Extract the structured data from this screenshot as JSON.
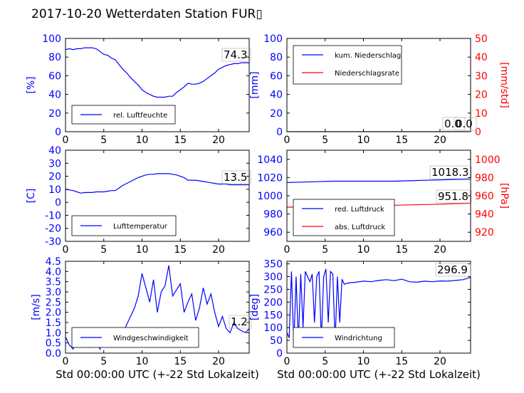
{
  "figure_title": "2017-10-20 Wetterdaten Station FUR▯",
  "colors": {
    "blue": "#0000ff",
    "red": "#ff0000",
    "black": "#000000",
    "light_blue": "#8080ff"
  },
  "chart_data": [
    {
      "id": "humidity",
      "type": "line",
      "xlabel": "",
      "ylabel": "[%]",
      "ylim": [
        0,
        100
      ],
      "xlim": [
        0,
        24
      ],
      "yticks": [
        0,
        20,
        40,
        60,
        80,
        100
      ],
      "xticks": [
        0,
        5,
        10,
        15,
        20
      ],
      "legend": {
        "placement": "lower-left",
        "entries": [
          "rel. Luftfeuchte"
        ]
      },
      "annotation": "74.3",
      "series": [
        {
          "name": "rel. Luftfeuchte",
          "color": "#0000ff",
          "x": [
            0,
            0.5,
            1,
            1.5,
            2,
            2.5,
            3,
            3.5,
            4,
            4.5,
            5,
            5.5,
            6,
            6.5,
            7,
            7.5,
            8,
            8.5,
            9,
            9.5,
            10,
            10.5,
            11,
            11.5,
            12,
            12.5,
            13,
            13.5,
            14,
            14.5,
            15,
            15.5,
            16,
            16.5,
            17,
            17.5,
            18,
            18.5,
            19,
            19.5,
            20,
            20.5,
            21,
            21.5,
            22,
            22.5,
            23,
            23.5,
            24
          ],
          "y": [
            88,
            89,
            88,
            89,
            89,
            90,
            90,
            90,
            89,
            86,
            83,
            82,
            79,
            77,
            72,
            67,
            63,
            58,
            54,
            50,
            45,
            42,
            40,
            38,
            37,
            37,
            37,
            38,
            38,
            42,
            45,
            48,
            52,
            51,
            51,
            52,
            54,
            57,
            60,
            63,
            67,
            69,
            71,
            72,
            73,
            73,
            74,
            74,
            74
          ]
        }
      ]
    },
    {
      "id": "precipitation",
      "type": "line",
      "xlabel": "",
      "ylabel": "[mm]",
      "ylabel_right": "[mm/std]",
      "ylim": [
        0,
        100
      ],
      "ylim_right": [
        0,
        50
      ],
      "xlim": [
        0,
        24
      ],
      "yticks": [
        0,
        20,
        40,
        60,
        80,
        100
      ],
      "yticks_right": [
        0,
        10,
        20,
        30,
        40,
        50
      ],
      "xticks": [
        0,
        5,
        10,
        15,
        20
      ],
      "legend": {
        "placement": "upper-left",
        "entries": [
          "kum. Niederschlag",
          "Niederschlagsrate"
        ]
      },
      "annotation": "0.0",
      "annotation2": "0.0",
      "series": [
        {
          "name": "kum. Niederschlag",
          "color": "#0000ff",
          "x": [
            0,
            24
          ],
          "y": [
            0,
            0
          ]
        },
        {
          "name": "Niederschlagsrate",
          "color": "#ff0000",
          "axis": "right",
          "x": [
            0,
            24
          ],
          "y": [
            0,
            0
          ]
        }
      ]
    },
    {
      "id": "temperature",
      "type": "line",
      "xlabel": "",
      "ylabel": "[C]",
      "ylim": [
        -30,
        40
      ],
      "xlim": [
        0,
        24
      ],
      "yticks": [
        -30,
        -20,
        -10,
        0,
        10,
        20,
        30,
        40
      ],
      "xticks": [
        0,
        5,
        10,
        15,
        20
      ],
      "legend": {
        "placement": "lower-left",
        "entries": [
          "Lufttemperatur"
        ]
      },
      "annotation": "13.5",
      "series": [
        {
          "name": "Lufttemperatur",
          "color": "#0000ff",
          "x": [
            0,
            0.5,
            1,
            1.5,
            2,
            2.5,
            3,
            3.5,
            4,
            4.5,
            5,
            5.5,
            6,
            6.5,
            7,
            7.5,
            8,
            8.5,
            9,
            9.5,
            10,
            10.5,
            11,
            11.5,
            12,
            12.5,
            13,
            13.5,
            14,
            14.5,
            15,
            15.5,
            16,
            16.5,
            17,
            17.5,
            18,
            18.5,
            19,
            19.5,
            20,
            20.5,
            21,
            21.5,
            22,
            22.5,
            23,
            23.5,
            24
          ],
          "y": [
            10,
            9.5,
            9,
            8,
            7,
            7.5,
            7.5,
            7.5,
            8,
            8,
            8,
            8.5,
            9,
            9,
            11,
            13,
            14.5,
            16,
            17.5,
            19,
            20,
            21,
            21.5,
            21.5,
            22,
            22,
            22,
            22,
            21.5,
            21,
            20,
            19,
            17,
            17,
            17,
            16.5,
            16,
            15.5,
            15,
            14.5,
            14,
            14,
            14,
            13.5,
            13.5,
            13.5,
            13.5,
            13.5,
            13.5
          ]
        }
      ]
    },
    {
      "id": "pressure",
      "type": "line",
      "xlabel": "",
      "ylabel": "",
      "ylabel_right": "[hPa]",
      "ylim": [
        950,
        1050
      ],
      "ylim_right": [
        910,
        1010
      ],
      "xlim": [
        0,
        24
      ],
      "yticks": [
        960,
        980,
        1000,
        1020,
        1040
      ],
      "yticks_right": [
        920,
        940,
        960,
        980,
        1000
      ],
      "xticks": [
        0,
        5,
        10,
        15,
        20
      ],
      "legend": {
        "placement": "lower-left",
        "entries": [
          "red. Luftdruck",
          "abs. Luftdruck"
        ]
      },
      "annotation": "1018.3",
      "annotation2": "951.8",
      "series": [
        {
          "name": "red. Luftdruck",
          "color": "#0000ff",
          "x": [
            0,
            2,
            4,
            6,
            8,
            10,
            12,
            14,
            16,
            18,
            20,
            22,
            24
          ],
          "y": [
            1014.5,
            1015,
            1015.5,
            1016,
            1016,
            1016,
            1016,
            1016,
            1016.5,
            1017,
            1017.5,
            1018,
            1018.3
          ]
        },
        {
          "name": "abs. Luftdruck",
          "color": "#ff0000",
          "axis": "right",
          "x": [
            0,
            2,
            4,
            6,
            8,
            10,
            12,
            14,
            16,
            18,
            20,
            22,
            24
          ],
          "y": [
            947.5,
            947.8,
            948,
            948.3,
            948.6,
            949,
            949.3,
            949.6,
            950,
            950.4,
            950.8,
            951.4,
            951.8
          ]
        }
      ]
    },
    {
      "id": "wind_speed",
      "type": "line",
      "xlabel": "Std 00:00:00 UTC (+-22 Std Lokalzeit)",
      "ylabel": "[m/s]",
      "ylim": [
        0,
        4.5
      ],
      "xlim": [
        0,
        24
      ],
      "yticks": [
        0.0,
        0.5,
        1.0,
        1.5,
        2.0,
        2.5,
        3.0,
        3.5,
        4.0,
        4.5
      ],
      "xticks": [
        0,
        5,
        10,
        15,
        20
      ],
      "legend": {
        "placement": "lower-left",
        "entries": [
          "Windgeschwindigkeit"
        ]
      },
      "annotation": "1.2",
      "series": [
        {
          "name": "Windgeschwindigkeit",
          "color": "#0000ff",
          "x": [
            0,
            0.5,
            1,
            1.5,
            2,
            2.5,
            3,
            3.5,
            4,
            4.5,
            5,
            5.5,
            6,
            6.5,
            7,
            7.5,
            8,
            8.5,
            9,
            9.5,
            10,
            10.5,
            11,
            11.5,
            12,
            12.5,
            13,
            13.5,
            14,
            14.5,
            15,
            15.5,
            16,
            16.5,
            17,
            17.5,
            18,
            18.5,
            19,
            19.5,
            20,
            20.5,
            21,
            21.5,
            22,
            22.5,
            23,
            23.5,
            24
          ],
          "y": [
            0.8,
            0.4,
            0.2,
            0.9,
            0.5,
            1.1,
            0.3,
            0.7,
            0.9,
            0.2,
            0.8,
            1.0,
            0.3,
            0.6,
            0.5,
            1.0,
            1.4,
            1.8,
            2.2,
            2.8,
            3.9,
            3.2,
            2.5,
            3.6,
            2.0,
            3.0,
            3.3,
            4.3,
            2.8,
            3.1,
            3.4,
            2.0,
            2.5,
            2.9,
            1.6,
            2.2,
            3.2,
            2.4,
            2.9,
            2.0,
            1.3,
            1.8,
            1.2,
            1.0,
            1.5,
            1.2,
            1.1,
            1.0,
            1.2
          ]
        }
      ]
    },
    {
      "id": "wind_direction",
      "type": "line",
      "xlabel": "Std 00:00:00 UTC (+-22 Std Lokalzeit)",
      "ylabel": "[deg]",
      "ylim": [
        0,
        360
      ],
      "xlim": [
        0,
        24
      ],
      "yticks": [
        0,
        50,
        100,
        150,
        200,
        250,
        300,
        350
      ],
      "xticks": [
        0,
        5,
        10,
        15,
        20
      ],
      "legend": {
        "placement": "lower-left",
        "entries": [
          "Windrichtung"
        ]
      },
      "annotation": "296.9",
      "series": [
        {
          "name": "Windrichtung",
          "color": "#0000ff",
          "x": [
            0,
            0.3,
            0.6,
            0.9,
            1.2,
            1.5,
            1.8,
            2.1,
            2.4,
            2.7,
            3,
            3.3,
            3.6,
            3.9,
            4.2,
            4.5,
            4.8,
            5.1,
            5.4,
            5.7,
            6,
            6.3,
            6.6,
            6.9,
            7.2,
            7.5,
            8,
            9,
            10,
            11,
            12,
            13,
            14,
            15,
            16,
            17,
            18,
            19,
            20,
            21,
            22,
            23,
            24
          ],
          "y": [
            80,
            60,
            320,
            30,
            300,
            40,
            310,
            100,
            320,
            300,
            280,
            310,
            120,
            300,
            320,
            50,
            300,
            330,
            120,
            320,
            310,
            40,
            300,
            120,
            290,
            270,
            275,
            278,
            282,
            280,
            285,
            288,
            284,
            290,
            280,
            278,
            282,
            280,
            283,
            282,
            285,
            288,
            297
          ]
        }
      ]
    }
  ]
}
